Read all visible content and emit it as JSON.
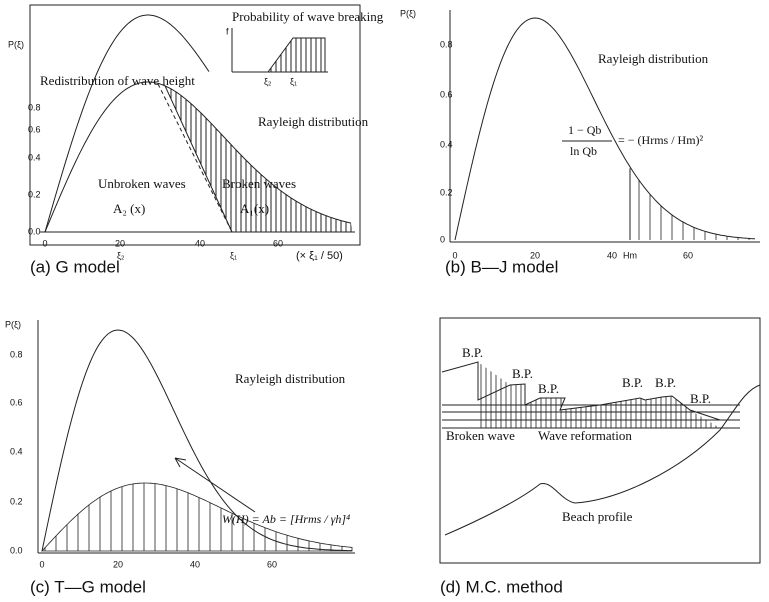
{
  "panels": [
    {
      "caption": "(a) G model",
      "ylabel": "P(ξ)",
      "yticks": [
        "0.0",
        "0.2",
        "0.4",
        "0.6",
        "0.8"
      ],
      "xticks": [
        "0",
        "20",
        "40",
        "60"
      ],
      "labels": [
        "Probability of wave breaking",
        "Redistribution of wave height",
        "Rayleigh distribution",
        "Unbroken waves",
        "A₂ (x)",
        "Broken waves",
        "A₁(x)",
        "ξ₂",
        "ξ₁",
        "(× ξ₁ / 50)",
        "ξ₂",
        "ξ₁",
        "f"
      ]
    },
    {
      "caption": "(b) B—J model",
      "ylabel": "P(ξ)",
      "yticks": [
        "0",
        "0.2",
        "0.4",
        "0.6",
        "0.8"
      ],
      "xticks": [
        "0",
        "20",
        "40",
        "Hm",
        "60"
      ],
      "labels": [
        "Rayleigh distribution",
        "1 − Qb",
        "ln Qb",
        "= − (Hrms / Hm)²"
      ]
    },
    {
      "caption": "(c) T—G model",
      "ylabel": "P(ξ)",
      "yticks": [
        "0.0",
        "0.2",
        "0.4",
        "0.6",
        "0.8"
      ],
      "xticks": [
        "0",
        "20",
        "40",
        "60"
      ],
      "labels": [
        "Rayleigh distribution",
        "W(H) = Ab = [Hrms / γh]⁴"
      ]
    },
    {
      "caption": "(d) M.C. method",
      "labels": [
        "B.P.",
        "B.P.",
        "B.P.",
        "B.P.",
        "B.P.",
        "B.P.",
        "Broken wave",
        "Wave reformation",
        "Beach profile"
      ]
    }
  ]
}
